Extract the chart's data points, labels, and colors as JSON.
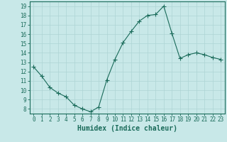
{
  "x": [
    0,
    1,
    2,
    3,
    4,
    5,
    6,
    7,
    8,
    9,
    10,
    11,
    12,
    13,
    14,
    15,
    16,
    17,
    18,
    19,
    20,
    21,
    22,
    23
  ],
  "y": [
    12.5,
    11.5,
    10.3,
    9.7,
    9.3,
    8.4,
    8.0,
    7.7,
    8.2,
    11.1,
    13.3,
    15.1,
    16.3,
    17.4,
    18.0,
    18.1,
    19.0,
    16.1,
    13.4,
    13.8,
    14.0,
    13.8,
    13.5,
    13.3
  ],
  "line_color": "#1a6b5a",
  "marker": "+",
  "marker_size": 4,
  "bg_color": "#c8e8e8",
  "grid_color": "#aed4d4",
  "xlabel": "Humidex (Indice chaleur)",
  "ylabel_ticks": [
    8,
    9,
    10,
    11,
    12,
    13,
    14,
    15,
    16,
    17,
    18,
    19
  ],
  "xlim": [
    -0.5,
    23.5
  ],
  "ylim": [
    7.5,
    19.5
  ],
  "xticks": [
    0,
    1,
    2,
    3,
    4,
    5,
    6,
    7,
    8,
    9,
    10,
    11,
    12,
    13,
    14,
    15,
    16,
    17,
    18,
    19,
    20,
    21,
    22,
    23
  ],
  "axis_color": "#1a6b5a",
  "label_fontsize": 7,
  "tick_fontsize": 5.5,
  "linewidth": 0.8
}
